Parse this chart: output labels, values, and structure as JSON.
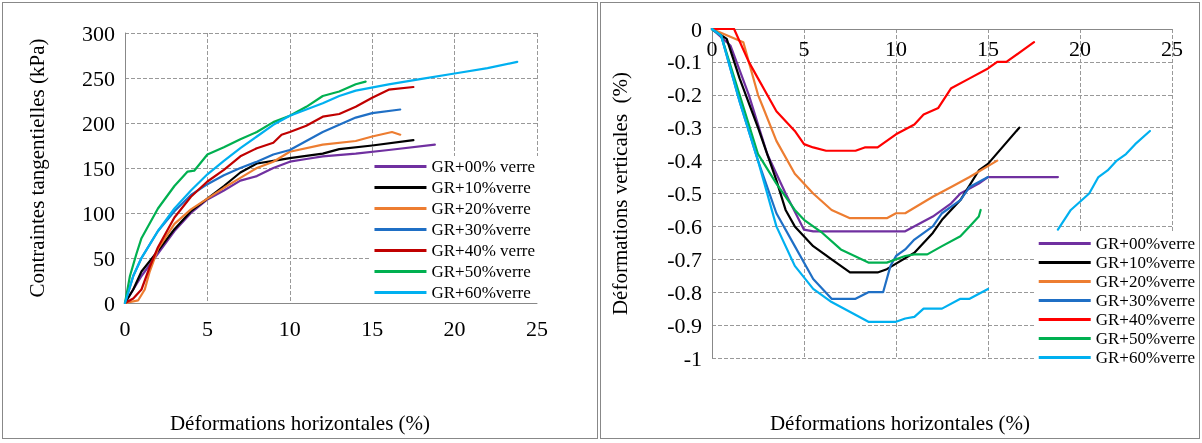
{
  "chart_data": [
    {
      "type": "line",
      "xlabel": "Déformations horizontales (%)",
      "ylabel": "Contraintes tangentielles (kPa)",
      "xlim": [
        0,
        25
      ],
      "ylim": [
        0,
        300
      ],
      "xticks": [
        0,
        5,
        10,
        15,
        20,
        25
      ],
      "yticks": [
        0,
        50,
        100,
        150,
        200,
        250,
        300
      ],
      "grid": true,
      "legend": "bottom right",
      "marker": "none",
      "series": [
        {
          "name": "GR+00% verre",
          "color": "#7030a0",
          "x": [
            0,
            1,
            2,
            3,
            4,
            5,
            6,
            7,
            8,
            9,
            10,
            11,
            12,
            14,
            16,
            18.8
          ],
          "values": [
            0,
            30,
            55,
            80,
            100,
            115,
            125,
            136,
            141,
            150,
            157,
            160,
            163,
            166,
            170,
            176
          ]
        },
        {
          "name": "GR+10%verre",
          "color": "#000000",
          "x": [
            0,
            0.5,
            1,
            2,
            3,
            4,
            5,
            6,
            7,
            8,
            9,
            10,
            12,
            13,
            15,
            17.5
          ],
          "values": [
            0,
            15,
            35,
            58,
            82,
            102,
            116,
            130,
            145,
            155,
            158,
            161,
            166,
            171,
            175,
            181
          ]
        },
        {
          "name": "GR+20%verre",
          "color": "#ed7d31",
          "x": [
            0,
            0.8,
            1.2,
            1.5,
            2,
            3,
            4,
            5,
            6,
            7,
            8,
            9,
            10,
            12,
            14,
            15,
            16.2,
            16.7
          ],
          "values": [
            0,
            3,
            15,
            35,
            60,
            88,
            104,
            116,
            128,
            139,
            150,
            157,
            168,
            176,
            180,
            185,
            190,
            187
          ]
        },
        {
          "name": "GR+30%verre",
          "color": "#1f6fc5",
          "x": [
            0,
            0.5,
            1,
            2,
            3,
            4,
            5,
            6,
            7,
            8,
            9,
            10,
            11,
            12,
            13,
            14,
            15,
            16.7
          ],
          "values": [
            0,
            30,
            50,
            80,
            102,
            120,
            132,
            142,
            150,
            157,
            165,
            170,
            180,
            190,
            198,
            206,
            211,
            215
          ]
        },
        {
          "name": "GR+40% verre",
          "color": "#c00000",
          "x": [
            0,
            0.5,
            1,
            1.5,
            2,
            3,
            4,
            5,
            6,
            7,
            8,
            9,
            9.5,
            10,
            11,
            12,
            13,
            14,
            15,
            16,
            17.5
          ],
          "values": [
            0,
            5,
            15,
            40,
            62,
            95,
            118,
            135,
            148,
            163,
            172,
            178,
            187,
            190,
            197,
            207,
            210,
            218,
            228,
            237,
            240
          ]
        },
        {
          "name": "GR+50%verre",
          "color": "#00b050",
          "x": [
            0,
            0.3,
            0.7,
            1,
            2,
            3,
            3.8,
            4.2,
            5,
            6,
            7,
            8,
            9,
            10,
            11,
            12,
            13,
            14,
            14.6
          ],
          "values": [
            0,
            30,
            55,
            72,
            105,
            130,
            146,
            147,
            165,
            173,
            182,
            190,
            201,
            208,
            218,
            230,
            235,
            243,
            246
          ]
        },
        {
          "name": "GR+60%verre",
          "color": "#00b0f0",
          "x": [
            0,
            0.5,
            1,
            2,
            3,
            4,
            5,
            6,
            7,
            8,
            9,
            10,
            11,
            12,
            13,
            14,
            16,
            18,
            20,
            22,
            23.8
          ],
          "values": [
            0,
            30,
            50,
            80,
            105,
            125,
            143,
            158,
            172,
            185,
            198,
            208,
            215,
            222,
            230,
            236,
            243,
            249,
            255,
            261,
            268
          ]
        }
      ]
    },
    {
      "type": "line",
      "xlabel": "Déformations horizontales (%)",
      "ylabel": "Déformations verticales  (%)",
      "xlim": [
        0,
        25
      ],
      "ylim": [
        -1,
        0
      ],
      "xticks": [
        0,
        5,
        10,
        15,
        20,
        25
      ],
      "yticks": [
        -1,
        -0.9,
        -0.8,
        -0.7,
        -0.6,
        -0.5,
        -0.4,
        -0.3,
        -0.2,
        -0.1,
        0
      ],
      "grid": true,
      "legend": "bottom right",
      "marker": "none",
      "series": [
        {
          "name": "GR+00%verre",
          "color": "#7030a0",
          "x": [
            0,
            1,
            2,
            3,
            4,
            5,
            5.5,
            10.5,
            12,
            13,
            13.5,
            14.5,
            15,
            18.8
          ],
          "values": [
            0,
            -0.05,
            -0.2,
            -0.38,
            -0.5,
            -0.61,
            -0.615,
            -0.615,
            -0.57,
            -0.53,
            -0.5,
            -0.47,
            -0.45,
            -0.45
          ]
        },
        {
          "name": "GR+10%verre",
          "color": "#000000",
          "x": [
            0,
            0.8,
            1.5,
            2.5,
            3.5,
            4,
            4.5,
            5.5,
            6.5,
            7.5,
            9,
            9.5,
            11,
            12,
            12.5,
            13.5,
            14.5,
            15,
            16.7
          ],
          "values": [
            0,
            -0.03,
            -0.15,
            -0.3,
            -0.46,
            -0.55,
            -0.6,
            -0.66,
            -0.7,
            -0.74,
            -0.74,
            -0.73,
            -0.68,
            -0.62,
            -0.58,
            -0.52,
            -0.43,
            -0.41,
            -0.3
          ]
        },
        {
          "name": "GR+20%verre",
          "color": "#ed7d31",
          "x": [
            0,
            1.7,
            2.5,
            3.5,
            4.5,
            5.5,
            6.5,
            7.5,
            9.5,
            10,
            10.5,
            12,
            13,
            14,
            15.5
          ],
          "values": [
            0,
            -0.04,
            -0.2,
            -0.34,
            -0.44,
            -0.5,
            -0.55,
            -0.575,
            -0.575,
            -0.56,
            -0.56,
            -0.51,
            -0.48,
            -0.45,
            -0.4
          ]
        },
        {
          "name": "GR+30%verre",
          "color": "#1f6fc5",
          "x": [
            0,
            0.5,
            1.5,
            2.5,
            3.5,
            4.5,
            5.5,
            6.5,
            7.8,
            8.5,
            9.3,
            9.7,
            10,
            10.5,
            11,
            12,
            12.5,
            13.5,
            14,
            15
          ],
          "values": [
            0,
            -0.02,
            -0.22,
            -0.4,
            -0.56,
            -0.66,
            -0.76,
            -0.82,
            -0.82,
            -0.8,
            -0.8,
            -0.72,
            -0.69,
            -0.67,
            -0.64,
            -0.6,
            -0.56,
            -0.52,
            -0.48,
            -0.45
          ]
        },
        {
          "name": "GR+40%verre",
          "color": "#ff0000",
          "x": [
            0,
            1.2,
            2,
            2.5,
            3.5,
            4.5,
            5,
            5.5,
            6.2,
            7.8,
            8.3,
            9,
            10,
            11,
            11.5,
            12.3,
            13,
            14,
            15,
            15.5,
            16,
            17.5
          ],
          "values": [
            0,
            0,
            -0.1,
            -0.15,
            -0.25,
            -0.31,
            -0.35,
            -0.36,
            -0.37,
            -0.37,
            -0.36,
            -0.36,
            -0.32,
            -0.29,
            -0.26,
            -0.24,
            -0.18,
            -0.15,
            -0.12,
            -0.1,
            -0.1,
            -0.04
          ]
        },
        {
          "name": "GR+50%verre",
          "color": "#00b050",
          "x": [
            0,
            0.5,
            1.5,
            2.5,
            3.5,
            4.5,
            5,
            6,
            7,
            8.5,
            9.5,
            10.5,
            11,
            11.7,
            12.5,
            13.5,
            14,
            14.5,
            14.6
          ],
          "values": [
            0,
            -0.02,
            -0.2,
            -0.38,
            -0.47,
            -0.55,
            -0.58,
            -0.62,
            -0.67,
            -0.71,
            -0.71,
            -0.69,
            -0.685,
            -0.685,
            -0.66,
            -0.63,
            -0.6,
            -0.57,
            -0.55
          ]
        },
        {
          "name": "GR+60%verre",
          "color": "#00b0f0",
          "x": [
            0,
            0.5,
            1.5,
            2.5,
            3.5,
            4.5,
            5.5,
            6.5,
            8.5,
            10,
            10.5,
            11,
            11.5,
            12.5,
            13.5,
            14,
            15,
            17,
            18.8,
            19.5,
            20.5,
            21,
            21.5,
            22,
            22.5,
            23,
            23.8
          ],
          "values": [
            0,
            -0.02,
            -0.22,
            -0.4,
            -0.6,
            -0.72,
            -0.79,
            -0.83,
            -0.89,
            -0.89,
            -0.88,
            -0.875,
            -0.85,
            -0.85,
            -0.82,
            -0.82,
            -0.79,
            null,
            -0.61,
            -0.55,
            -0.5,
            -0.45,
            -0.43,
            -0.4,
            -0.38,
            -0.35,
            -0.31
          ]
        }
      ]
    }
  ]
}
